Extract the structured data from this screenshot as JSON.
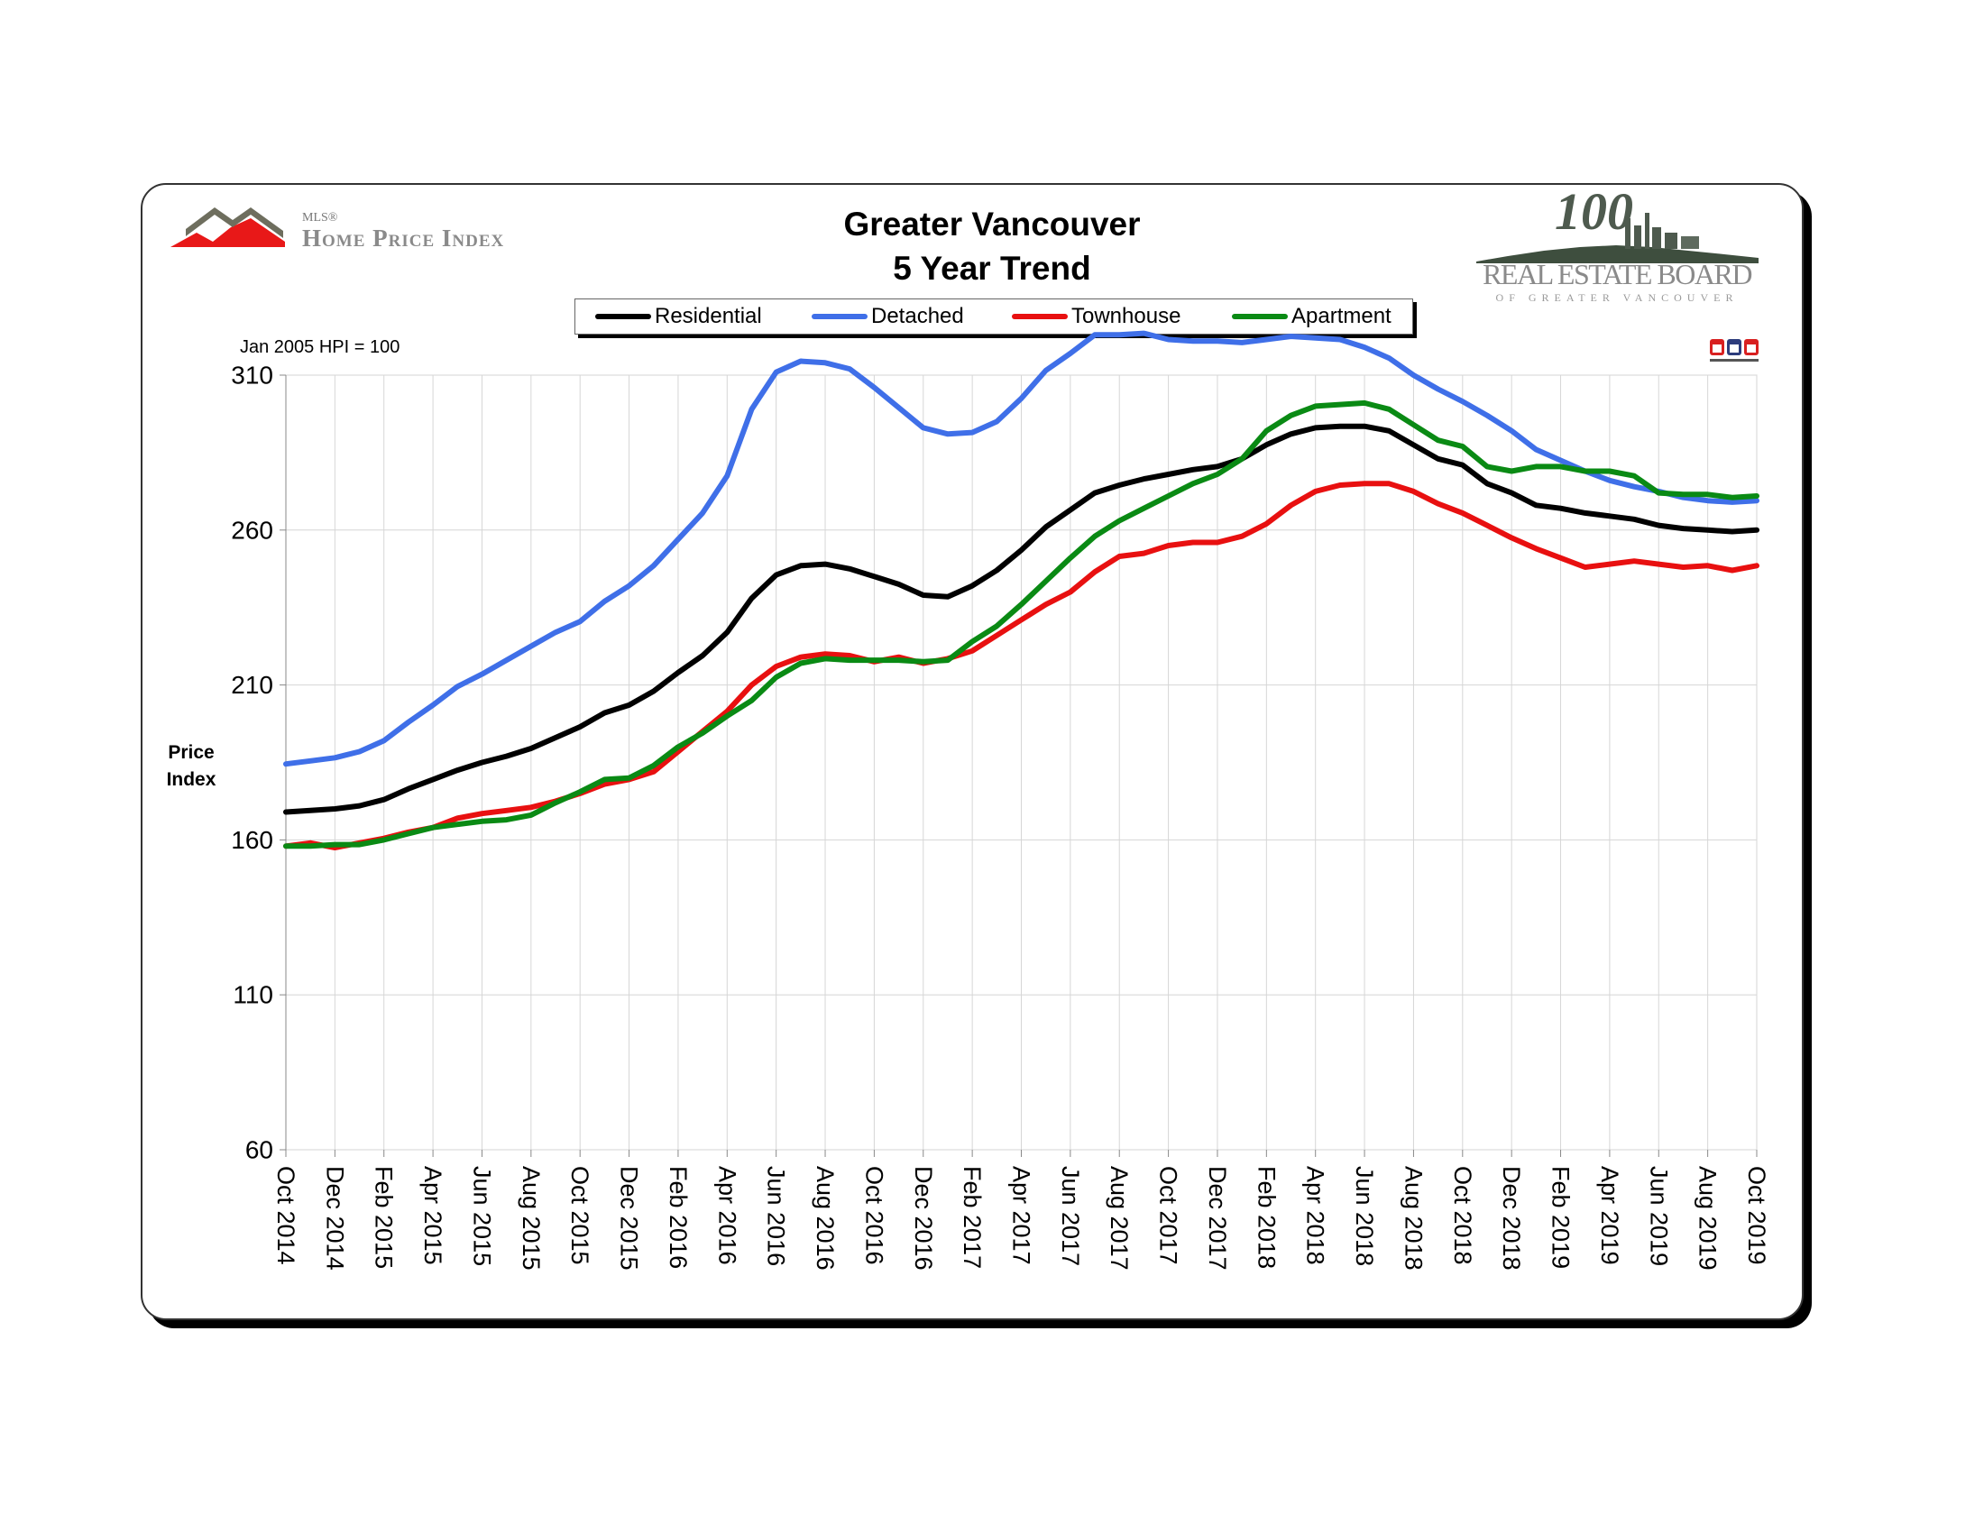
{
  "header": {
    "mls_superscript": "MLS®",
    "mls_name": "Home Price Index",
    "board_name": "REAL ESTATE BOARD",
    "board_subtitle": "OF GREATER VANCOUVER"
  },
  "colors": {
    "Residential": "#000000",
    "Detached": "#3f6fe8",
    "Townhouse": "#e81010",
    "Apartment": "#0a8a14"
  },
  "icons": [
    "mls-hpi-house-logo-icon",
    "real-estate-board-100-skyline-icon",
    "mls-badge-icon"
  ],
  "chart_data": {
    "type": "line",
    "title": "Greater Vancouver",
    "subtitle": "5 Year Trend",
    "note": "Jan 2005 HPI = 100",
    "ylabel": "Price Index",
    "xlabel": "",
    "ylim": [
      60,
      310
    ],
    "yticks": [
      60,
      110,
      160,
      210,
      260,
      310
    ],
    "grid": true,
    "legend_position": "top",
    "x": [
      "Oct 2014",
      "Nov 2014",
      "Dec 2014",
      "Jan 2015",
      "Feb 2015",
      "Mar 2015",
      "Apr 2015",
      "May 2015",
      "Jun 2015",
      "Jul 2015",
      "Aug 2015",
      "Sep 2015",
      "Oct 2015",
      "Nov 2015",
      "Dec 2015",
      "Jan 2016",
      "Feb 2016",
      "Mar 2016",
      "Apr 2016",
      "May 2016",
      "Jun 2016",
      "Jul 2016",
      "Aug 2016",
      "Sep 2016",
      "Oct 2016",
      "Nov 2016",
      "Dec 2016",
      "Jan 2017",
      "Feb 2017",
      "Mar 2017",
      "Apr 2017",
      "May 2017",
      "Jun 2017",
      "Jul 2017",
      "Aug 2017",
      "Sep 2017",
      "Oct 2017",
      "Nov 2017",
      "Dec 2017",
      "Jan 2018",
      "Feb 2018",
      "Mar 2018",
      "Apr 2018",
      "May 2018",
      "Jun 2018",
      "Jul 2018",
      "Aug 2018",
      "Sep 2018",
      "Oct 2018",
      "Nov 2018",
      "Dec 2018",
      "Jan 2019",
      "Feb 2019",
      "Mar 2019",
      "Apr 2019",
      "May 2019",
      "Jun 2019",
      "Jul 2019",
      "Aug 2019",
      "Sep 2019",
      "Oct 2019"
    ],
    "xtick_labels": [
      "Oct 2014",
      "Dec 2014",
      "Feb 2015",
      "Apr 2015",
      "Jun 2015",
      "Aug 2015",
      "Oct 2015",
      "Dec 2015",
      "Feb 2016",
      "Apr 2016",
      "Jun 2016",
      "Aug 2016",
      "Oct 2016",
      "Dec 2016",
      "Feb 2017",
      "Apr 2017",
      "Jun 2017",
      "Aug 2017",
      "Oct 2017",
      "Dec 2017",
      "Feb 2018",
      "Apr 2018",
      "Jun 2018",
      "Aug 2018",
      "Oct 2018",
      "Dec 2018",
      "Feb 2019",
      "Apr 2019",
      "Jun 2019",
      "Aug 2019",
      "Oct 2019"
    ],
    "series": [
      {
        "name": "Residential",
        "values": [
          169,
          169.5,
          170,
          171,
          173,
          176.5,
          179.5,
          182.5,
          185,
          187,
          189.5,
          193,
          196.5,
          201,
          203.5,
          208,
          214,
          219.5,
          227,
          238,
          245.5,
          248.5,
          249,
          247.5,
          245,
          242.5,
          239,
          238.5,
          242,
          247,
          253.5,
          261,
          266.5,
          272,
          274.5,
          276.5,
          278,
          279.5,
          280.5,
          283,
          287.5,
          291,
          293,
          293.5,
          293.5,
          292,
          287.5,
          283,
          281,
          275,
          272,
          268,
          267,
          265.5,
          264.5,
          263.5,
          261.5,
          260.5,
          260,
          259.5,
          260
        ]
      },
      {
        "name": "Detached",
        "values": [
          184.5,
          185.5,
          186.5,
          188.5,
          192,
          198,
          203.5,
          209.5,
          213.5,
          218,
          222.5,
          227,
          230.5,
          237,
          242,
          248.5,
          257,
          265.5,
          277.5,
          299,
          311,
          314.5,
          314,
          312,
          306,
          299.5,
          293,
          291,
          291.5,
          295,
          302.5,
          311.5,
          317,
          323,
          323,
          323.5,
          321.5,
          321,
          321,
          320.5,
          321.5,
          322.5,
          322,
          321.5,
          319,
          315.5,
          310,
          305.5,
          301.5,
          297,
          292,
          286,
          282.5,
          279,
          276,
          274,
          272.5,
          270.5,
          269.5,
          269,
          269.5
        ]
      },
      {
        "name": "Townhouse",
        "values": [
          158,
          159,
          157.5,
          159,
          160.5,
          162.5,
          164,
          167,
          168.5,
          169.5,
          170.5,
          172.5,
          175,
          178,
          179.5,
          182,
          188.5,
          195,
          201.5,
          210,
          216,
          219,
          220,
          219.5,
          217.5,
          219,
          217,
          218.5,
          221,
          226,
          231,
          236,
          240,
          246.5,
          251.5,
          252.5,
          255,
          256,
          256,
          258,
          262,
          268,
          272.5,
          274.5,
          275,
          275,
          272.5,
          268.5,
          265.5,
          261.5,
          257.5,
          254,
          251,
          248,
          249,
          250,
          249,
          248,
          248.5,
          247,
          248.5
        ]
      },
      {
        "name": "Apartment",
        "values": [
          158,
          158,
          158.5,
          158.5,
          160,
          162,
          164,
          165,
          166,
          166.5,
          168,
          172,
          175.5,
          179.5,
          180,
          184,
          190,
          194.5,
          200,
          205,
          212.5,
          217,
          218.5,
          218,
          218,
          218,
          217.5,
          218,
          224,
          229,
          236,
          243.5,
          251,
          258,
          263,
          267,
          271,
          275,
          278,
          283,
          292,
          297,
          300,
          300.5,
          301,
          299,
          294,
          289,
          287,
          280.5,
          279,
          280.5,
          280.5,
          279,
          279,
          277.5,
          272,
          271.5,
          271.5,
          270.5,
          271
        ]
      }
    ]
  }
}
